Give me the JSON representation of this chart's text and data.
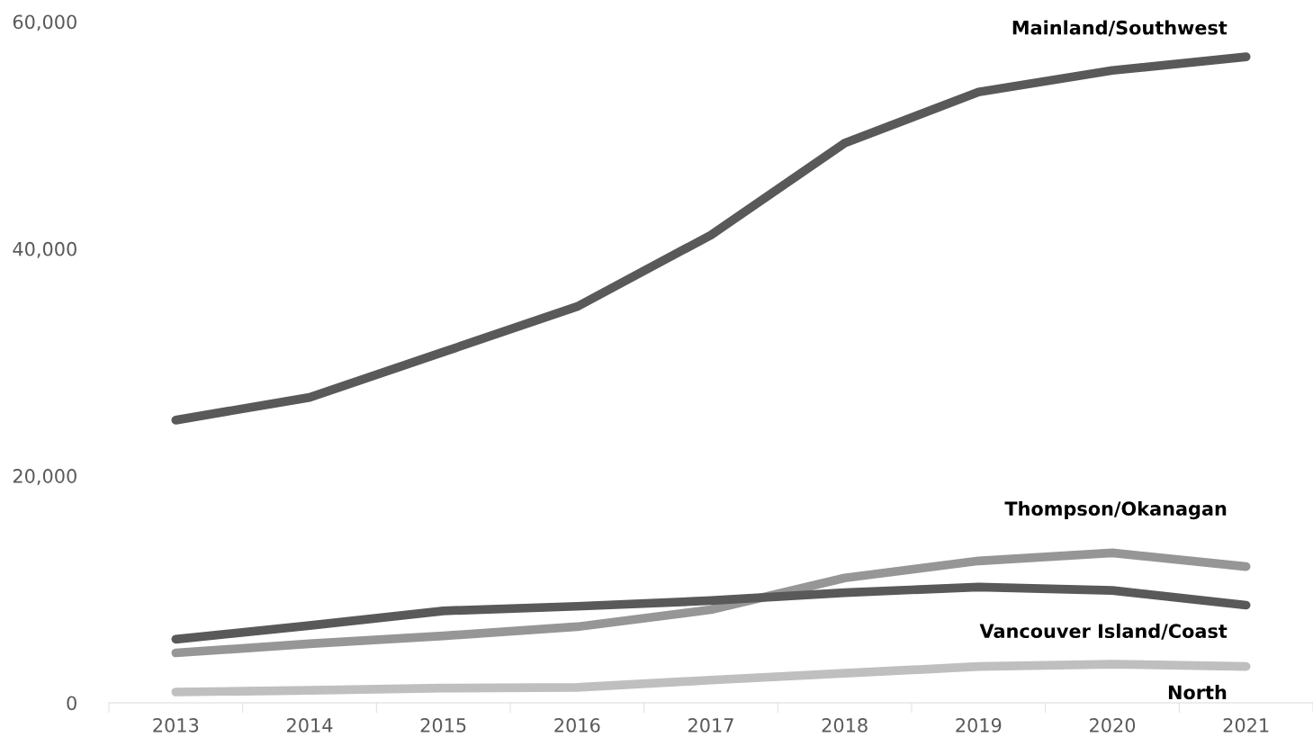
{
  "chart_data": {
    "type": "line",
    "categories": [
      "2013",
      "2014",
      "2015",
      "2016",
      "2017",
      "2018",
      "2019",
      "2020",
      "2021"
    ],
    "series": [
      {
        "name": "Mainland/Southwest",
        "color": "#595959",
        "values": [
          24900,
          26900,
          30900,
          34900,
          41200,
          49300,
          53800,
          55700,
          56900
        ]
      },
      {
        "name": "Thompson/Okanagan",
        "color": "#969696",
        "values": [
          4400,
          5200,
          5900,
          6700,
          8200,
          11000,
          12500,
          13200,
          12000
        ]
      },
      {
        "name": "Vancouver Island/Coast",
        "color": "#595959",
        "values": [
          5600,
          6800,
          8100,
          8500,
          9000,
          9700,
          10200,
          9900,
          8600
        ]
      },
      {
        "name": "North",
        "color": "#bfbfbf",
        "values": [
          950,
          1100,
          1300,
          1350,
          2000,
          2600,
          3200,
          3400,
          3200
        ]
      }
    ],
    "ylim": [
      0,
      60000
    ],
    "yticks": [
      {
        "value": 0,
        "label": "0"
      },
      {
        "value": 20000,
        "label": "20,000"
      },
      {
        "value": 40000,
        "label": "40,000"
      },
      {
        "value": 60000,
        "label": "60,000"
      }
    ],
    "grid": false,
    "legend": false,
    "marker": "none",
    "line_style": "solid"
  }
}
